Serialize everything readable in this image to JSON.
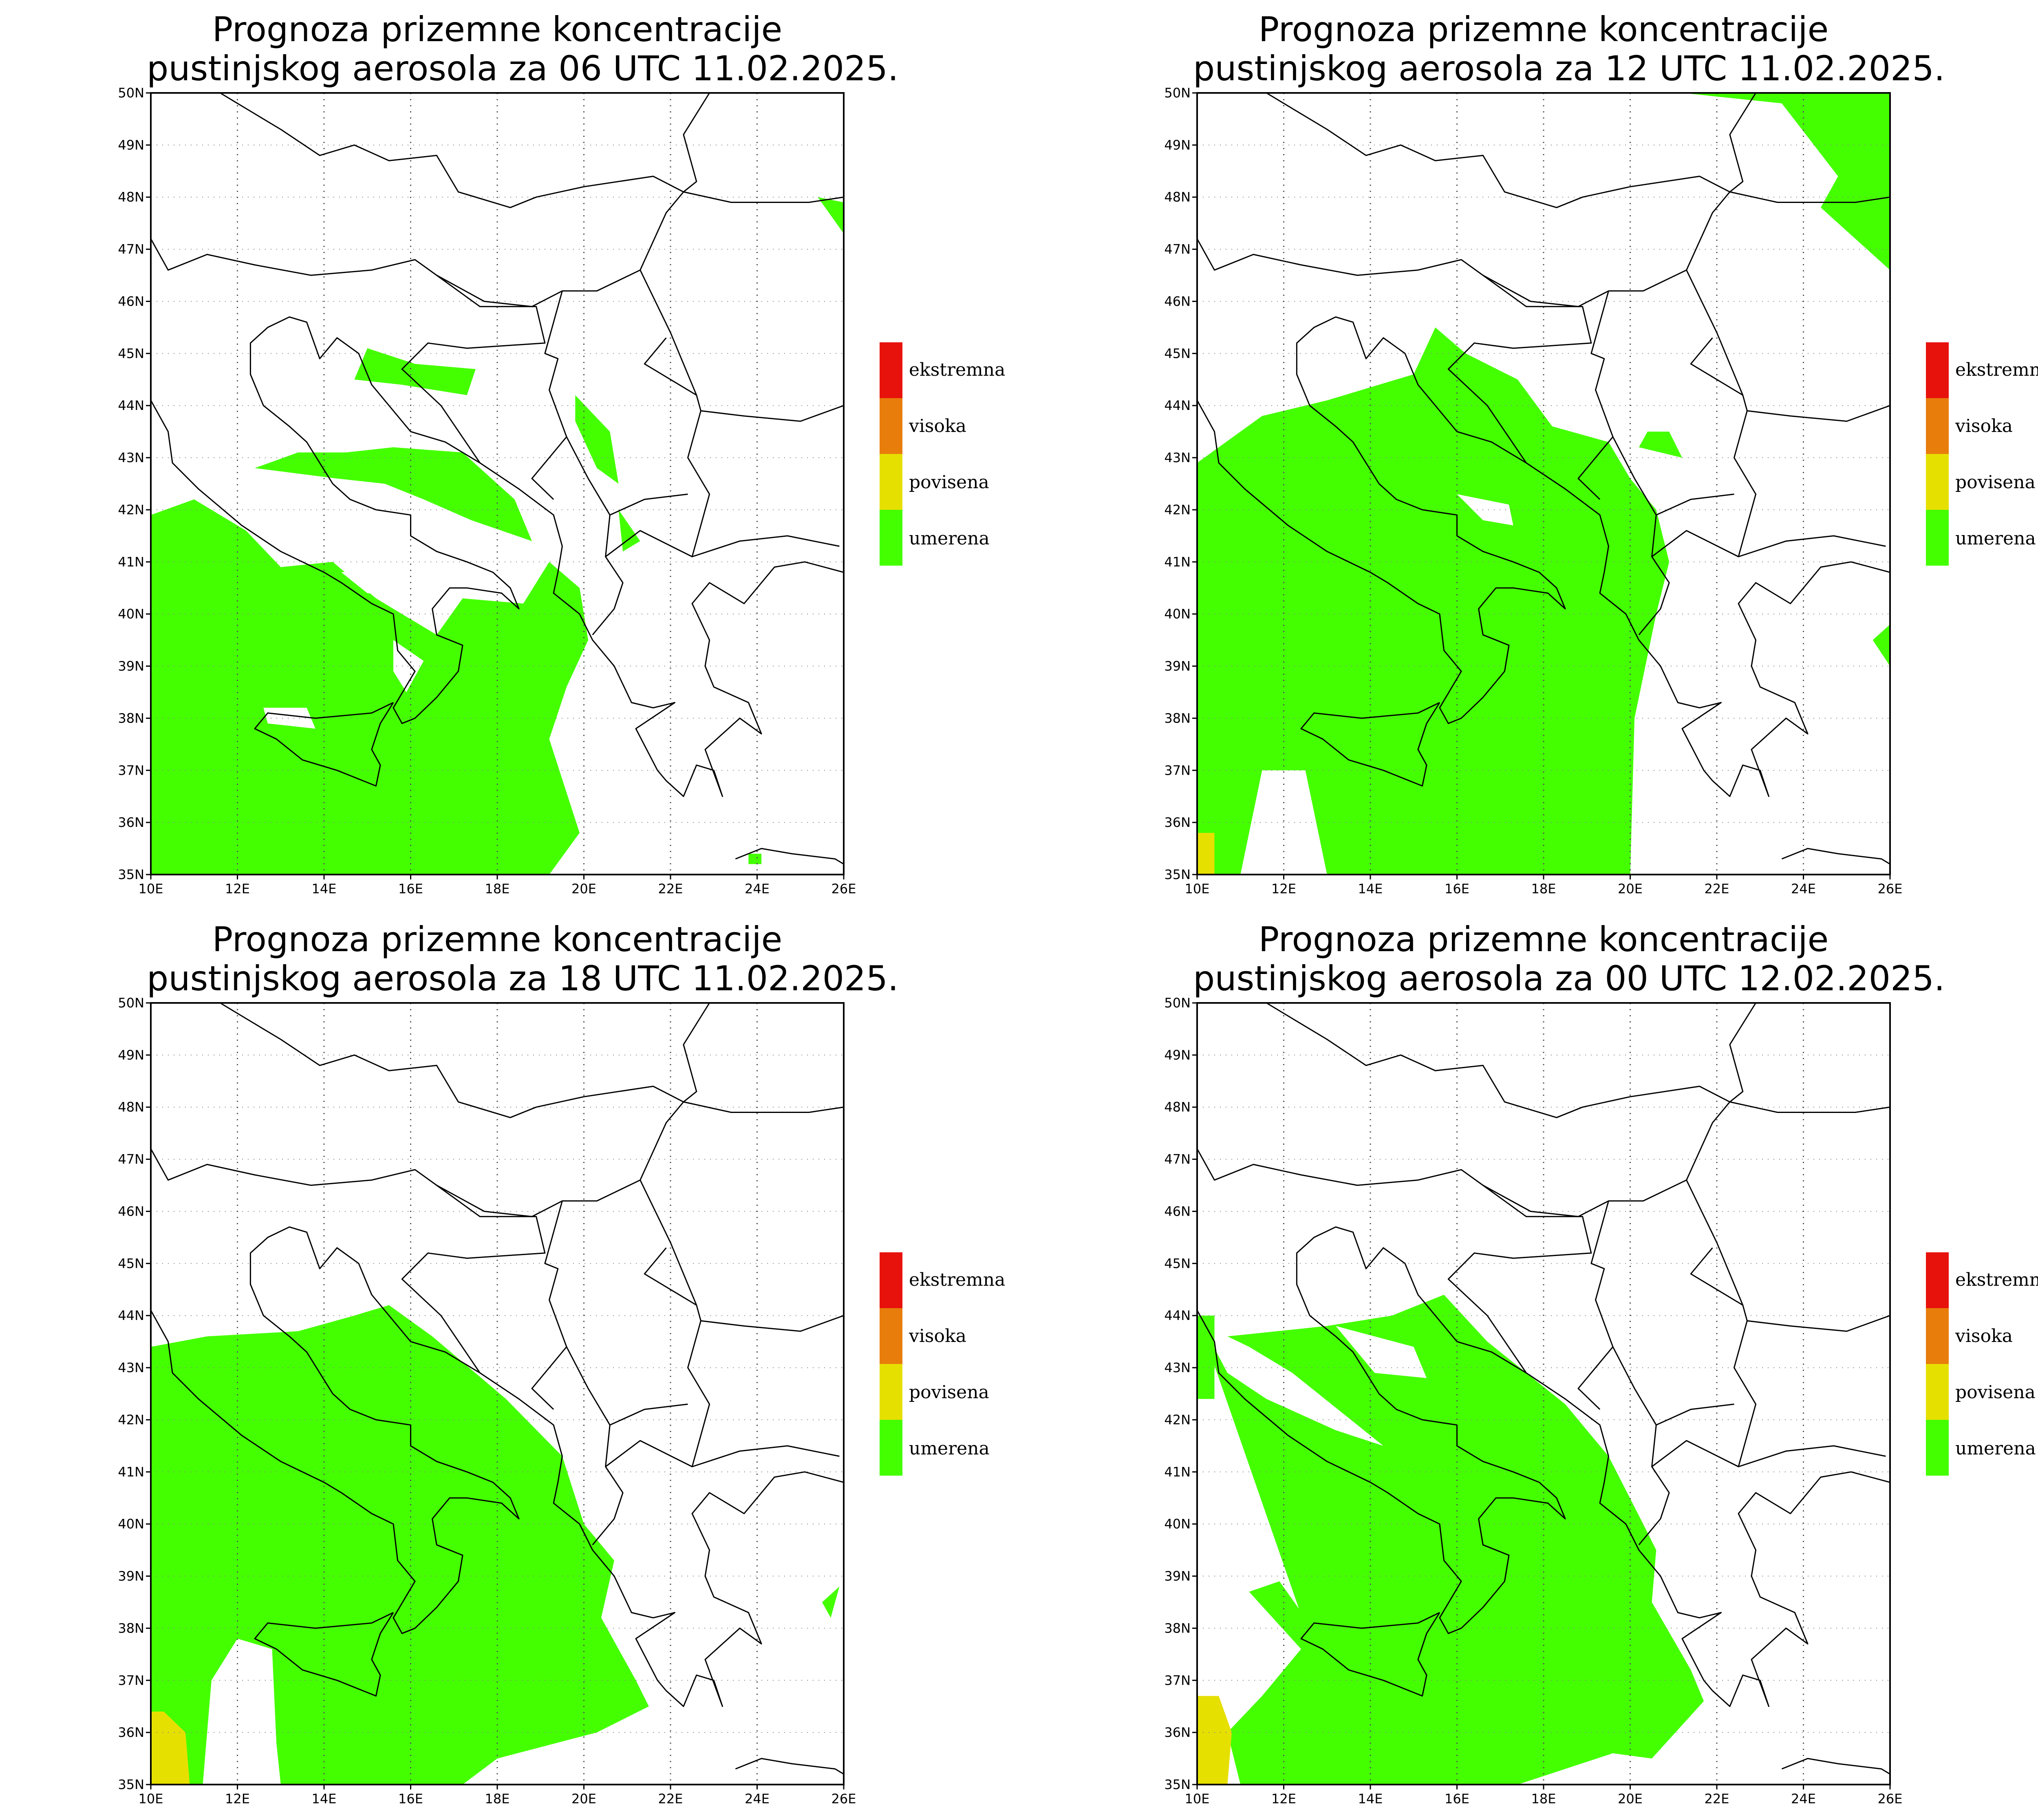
{
  "legend": [
    {
      "label": "ekstremna",
      "color": "#e8120c"
    },
    {
      "label": "visoka",
      "color": "#e87d0c"
    },
    {
      "label": "povisena",
      "color": "#e6e000"
    },
    {
      "label": "umerena",
      "color": "#44ff00"
    }
  ],
  "axes": {
    "lat_labels": [
      "50N",
      "49N",
      "48N",
      "47N",
      "46N",
      "45N",
      "44N",
      "43N",
      "42N",
      "41N",
      "40N",
      "39N",
      "38N",
      "37N",
      "36N",
      "35N"
    ],
    "lon_labels": [
      "10E",
      "12E",
      "14E",
      "16E",
      "18E",
      "20E",
      "22E",
      "24E",
      "26E"
    ],
    "lon_range": [
      10,
      26
    ],
    "lat_range": [
      35,
      50
    ]
  },
  "panels": [
    {
      "line1": "Prognoza prizemne koncentracije",
      "line2": "pustinjskog aerosola za 06 UTC 11.02.2025.",
      "yellow": false
    },
    {
      "line1": "Prognoza prizemne koncentracije",
      "line2": "pustinjskog aerosola za 12 UTC 11.02.2025.",
      "yellow": true
    },
    {
      "line1": "Prognoza prizemne koncentracije",
      "line2": "pustinjskog aerosola za 18 UTC 11.02.2025.",
      "yellow": true
    },
    {
      "line1": "Prognoza prizemne koncentracije",
      "line2": "pustinjskog aerosola za 00 UTC 12.02.2025.",
      "yellow": true
    }
  ]
}
